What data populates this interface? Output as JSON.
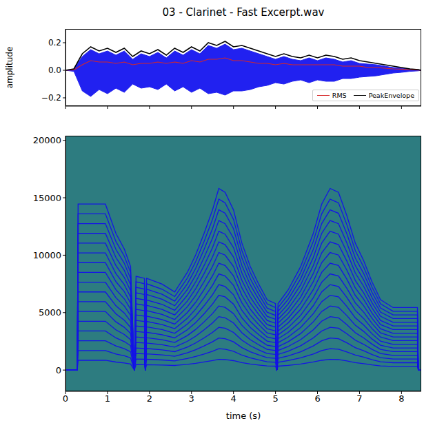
{
  "chart_data": [
    {
      "type": "line",
      "title": "03 - Clarinet - Fast Excerpt.wav",
      "y_label": "amplitude",
      "x": [
        0,
        0.2,
        0.4,
        0.6,
        0.8,
        1.0,
        1.2,
        1.4,
        1.6,
        1.8,
        2.0,
        2.2,
        2.4,
        2.6,
        2.8,
        3.0,
        3.2,
        3.4,
        3.6,
        3.8,
        4.0,
        4.2,
        4.4,
        4.6,
        4.8,
        5.0,
        5.2,
        5.4,
        5.6,
        5.8,
        6.0,
        6.2,
        6.4,
        6.6,
        6.8,
        7.0,
        7.2,
        7.4,
        7.6,
        7.8,
        8.0,
        8.2,
        8.4,
        8.47
      ],
      "series": [
        {
          "name": "RMS",
          "color": "#d62728",
          "values": [
            0,
            0.003,
            0.04,
            0.07,
            0.06,
            0.06,
            0.05,
            0.06,
            0.04,
            0.05,
            0.05,
            0.06,
            0.05,
            0.06,
            0.05,
            0.07,
            0.06,
            0.08,
            0.08,
            0.09,
            0.07,
            0.07,
            0.06,
            0.05,
            0.05,
            0.04,
            0.05,
            0.04,
            0.04,
            0.04,
            0.04,
            0.04,
            0.04,
            0.03,
            0.03,
            0.03,
            0.02,
            0.02,
            0.015,
            0.01,
            0.008,
            0.004,
            0.002,
            0
          ]
        },
        {
          "name": "PeakEnvelope",
          "color": "#000000",
          "values": [
            0,
            0.01,
            0.12,
            0.17,
            0.14,
            0.16,
            0.13,
            0.16,
            0.1,
            0.14,
            0.12,
            0.15,
            0.11,
            0.16,
            0.13,
            0.17,
            0.14,
            0.2,
            0.18,
            0.21,
            0.17,
            0.18,
            0.16,
            0.14,
            0.12,
            0.1,
            0.12,
            0.1,
            0.09,
            0.11,
            0.09,
            0.11,
            0.1,
            0.08,
            0.09,
            0.07,
            0.06,
            0.05,
            0.04,
            0.03,
            0.02,
            0.01,
            0.005,
            0
          ]
        }
      ],
      "waveform": {
        "color": "#2121f0",
        "max": [
          0,
          0.008,
          0.1,
          0.15,
          0.12,
          0.14,
          0.11,
          0.14,
          0.08,
          0.12,
          0.1,
          0.13,
          0.09,
          0.14,
          0.11,
          0.15,
          0.12,
          0.18,
          0.16,
          0.19,
          0.15,
          0.16,
          0.14,
          0.12,
          0.1,
          0.08,
          0.1,
          0.08,
          0.07,
          0.09,
          0.07,
          0.09,
          0.08,
          0.06,
          0.07,
          0.05,
          0.045,
          0.04,
          0.03,
          0.02,
          0.015,
          0.008,
          0.004,
          0
        ],
        "min": [
          0,
          -0.008,
          -0.15,
          -0.19,
          -0.14,
          -0.17,
          -0.13,
          -0.16,
          -0.1,
          -0.13,
          -0.12,
          -0.14,
          -0.1,
          -0.15,
          -0.12,
          -0.16,
          -0.13,
          -0.17,
          -0.16,
          -0.18,
          -0.15,
          -0.15,
          -0.14,
          -0.12,
          -0.11,
          -0.09,
          -0.1,
          -0.08,
          -0.07,
          -0.09,
          -0.07,
          -0.08,
          -0.08,
          -0.06,
          -0.06,
          -0.05,
          -0.045,
          -0.04,
          -0.03,
          -0.02,
          -0.015,
          -0.008,
          -0.004,
          0
        ]
      },
      "xlim": [
        0,
        8.47
      ],
      "xticks": [
        0,
        1,
        2,
        3,
        4,
        5,
        6,
        7,
        8
      ],
      "ylim": [
        -0.26,
        0.3
      ],
      "yticks": [
        {
          "value": -0.2,
          "label": "−0.2"
        },
        {
          "value": 0,
          "label": "0.0"
        },
        {
          "value": 0.2,
          "label": "0.2"
        }
      ],
      "tick_labels": "y",
      "legend": "lower right"
    },
    {
      "type": "line",
      "x_label": "time (s)",
      "color": "#1414e6",
      "x": [
        0,
        0.28,
        0.3,
        0.95,
        1.2,
        1.4,
        1.55,
        1.64,
        1.68,
        1.88,
        1.9,
        1.93,
        2.3,
        2.6,
        2.9,
        3.1,
        3.3,
        3.5,
        3.65,
        3.8,
        4.0,
        4.2,
        4.4,
        4.6,
        4.8,
        5.0,
        5.03,
        5.06,
        5.3,
        5.6,
        5.9,
        6.1,
        6.3,
        6.5,
        6.7,
        6.9,
        7.1,
        7.3,
        7.5,
        7.8,
        8.38,
        8.4,
        8.47
      ],
      "series": [
        {
          "values": [
            0,
            0,
            850,
            850,
            700,
            620,
            530,
            0,
            480,
            470,
            0,
            470,
            440,
            400,
            500,
            590,
            700,
            820,
            930,
            910,
            820,
            650,
            530,
            440,
            360,
            340,
            0,
            340,
            410,
            530,
            700,
            850,
            930,
            910,
            790,
            650,
            560,
            450,
            360,
            320,
            320,
            0,
            0
          ]
        },
        {
          "values": [
            0,
            0,
            1700,
            1700,
            1400,
            1240,
            1060,
            0,
            960,
            940,
            0,
            940,
            880,
            800,
            1000,
            1180,
            1400,
            1640,
            1860,
            1820,
            1640,
            1300,
            1060,
            880,
            720,
            680,
            0,
            680,
            820,
            1060,
            1400,
            1700,
            1860,
            1820,
            1580,
            1300,
            1120,
            900,
            720,
            640,
            640,
            0,
            0
          ]
        },
        {
          "values": [
            0,
            0,
            2550,
            2550,
            2100,
            1860,
            1590,
            0,
            1440,
            1410,
            0,
            1410,
            1320,
            1200,
            1500,
            1770,
            2100,
            2460,
            2790,
            2730,
            2460,
            1950,
            1590,
            1320,
            1080,
            1020,
            0,
            1020,
            1230,
            1590,
            2100,
            2550,
            2790,
            2730,
            2370,
            1950,
            1680,
            1350,
            1080,
            960,
            960,
            0,
            0
          ]
        },
        {
          "values": [
            0,
            0,
            3400,
            3400,
            2800,
            2480,
            2120,
            0,
            1920,
            1880,
            0,
            1880,
            1760,
            1600,
            2000,
            2360,
            2800,
            3280,
            3720,
            3640,
            3280,
            2600,
            2120,
            1760,
            1440,
            1360,
            0,
            1360,
            1640,
            2120,
            2800,
            3400,
            3720,
            3640,
            3160,
            2600,
            2240,
            1800,
            1440,
            1280,
            1280,
            0,
            0
          ]
        },
        {
          "values": [
            0,
            0,
            4250,
            4250,
            3500,
            3100,
            2650,
            0,
            2400,
            2350,
            0,
            2350,
            2200,
            2000,
            2500,
            2950,
            3500,
            4100,
            4650,
            4550,
            4100,
            3250,
            2650,
            2200,
            1800,
            1700,
            0,
            1700,
            2050,
            2650,
            3500,
            4250,
            4650,
            4550,
            3950,
            3250,
            2800,
            2250,
            1800,
            1600,
            1600,
            0,
            0
          ]
        },
        {
          "values": [
            0,
            0,
            5100,
            5100,
            4200,
            3720,
            3180,
            0,
            2880,
            2820,
            0,
            2820,
            2640,
            2400,
            3000,
            3540,
            4200,
            4920,
            5580,
            5460,
            4920,
            3900,
            3180,
            2640,
            2160,
            2040,
            0,
            2040,
            2460,
            3180,
            4200,
            5100,
            5580,
            5460,
            4740,
            3900,
            3360,
            2700,
            2160,
            1920,
            1920,
            0,
            0
          ]
        },
        {
          "values": [
            0,
            0,
            5950,
            5950,
            4900,
            4340,
            3710,
            0,
            3360,
            3290,
            0,
            3290,
            3080,
            2800,
            3500,
            4130,
            4900,
            5740,
            6510,
            6370,
            5740,
            4550,
            3710,
            3080,
            2520,
            2380,
            0,
            2380,
            2870,
            3710,
            4900,
            5950,
            6510,
            6370,
            5530,
            4550,
            3920,
            3150,
            2520,
            2240,
            2240,
            0,
            0
          ]
        },
        {
          "values": [
            0,
            0,
            6800,
            6800,
            5600,
            4960,
            4240,
            0,
            3840,
            3760,
            0,
            3760,
            3520,
            3200,
            4000,
            4720,
            5600,
            6560,
            7440,
            7280,
            6560,
            5200,
            4240,
            3520,
            2880,
            2720,
            0,
            2720,
            3280,
            4240,
            5600,
            6800,
            7440,
            7280,
            6320,
            5200,
            4480,
            3600,
            2880,
            2560,
            2560,
            0,
            0
          ]
        },
        {
          "values": [
            0,
            0,
            7650,
            7650,
            6300,
            5580,
            4770,
            0,
            4320,
            4230,
            0,
            4230,
            3960,
            3600,
            4500,
            5310,
            6300,
            7380,
            8370,
            8190,
            7380,
            5850,
            4770,
            3960,
            3240,
            3060,
            0,
            3060,
            3690,
            4770,
            6300,
            7650,
            8370,
            8190,
            7110,
            5850,
            5040,
            4050,
            3240,
            2880,
            2880,
            0,
            0
          ]
        },
        {
          "values": [
            0,
            0,
            8500,
            8500,
            7000,
            6200,
            5300,
            0,
            4800,
            4700,
            0,
            4700,
            4400,
            4000,
            5000,
            5900,
            7000,
            8200,
            9300,
            9100,
            8200,
            6500,
            5300,
            4400,
            3600,
            3400,
            0,
            3400,
            4100,
            5300,
            7000,
            8500,
            9300,
            9100,
            7900,
            6500,
            5600,
            4500,
            3600,
            3200,
            3200,
            0,
            0
          ]
        },
        {
          "values": [
            0,
            0,
            9350,
            9350,
            7700,
            6820,
            5830,
            0,
            5280,
            5170,
            0,
            5170,
            4840,
            4400,
            5500,
            6490,
            7700,
            9020,
            10230,
            10010,
            9020,
            7150,
            5830,
            4840,
            3960,
            3740,
            0,
            3740,
            4510,
            5830,
            7700,
            9350,
            10230,
            10010,
            8690,
            7150,
            6160,
            4950,
            3960,
            3520,
            3520,
            0,
            0
          ]
        },
        {
          "values": [
            0,
            0,
            10200,
            10200,
            8400,
            7440,
            6360,
            0,
            5760,
            5640,
            0,
            5640,
            5280,
            4800,
            6000,
            7080,
            8400,
            9840,
            11160,
            10920,
            9840,
            7800,
            6360,
            5280,
            4320,
            4080,
            0,
            4080,
            4920,
            6360,
            8400,
            10200,
            11160,
            10920,
            9480,
            7800,
            6720,
            5400,
            4320,
            3840,
            3840,
            0,
            0
          ]
        },
        {
          "values": [
            0,
            0,
            11050,
            11050,
            9100,
            8060,
            6890,
            0,
            6240,
            6110,
            0,
            6110,
            5720,
            5200,
            6500,
            7670,
            9100,
            10660,
            12090,
            11830,
            10660,
            8450,
            6890,
            5720,
            4680,
            4420,
            0,
            4420,
            5330,
            6890,
            9100,
            11050,
            12090,
            11830,
            10270,
            8450,
            7280,
            5850,
            4680,
            4160,
            4160,
            0,
            0
          ]
        },
        {
          "values": [
            0,
            0,
            11900,
            11900,
            9800,
            8680,
            7420,
            0,
            6720,
            6580,
            0,
            6580,
            6160,
            5600,
            7000,
            8260,
            9800,
            11480,
            13020,
            12740,
            11480,
            9100,
            7420,
            6160,
            5040,
            4760,
            0,
            4760,
            5740,
            7420,
            9800,
            11900,
            13020,
            12740,
            11060,
            9100,
            7840,
            6300,
            5040,
            4480,
            4480,
            0,
            0
          ]
        },
        {
          "values": [
            0,
            0,
            12750,
            12750,
            10500,
            9300,
            7950,
            0,
            7200,
            7050,
            0,
            7050,
            6600,
            6000,
            7500,
            8850,
            10500,
            12300,
            13950,
            13650,
            12300,
            9750,
            7950,
            6600,
            5400,
            5100,
            0,
            5100,
            6150,
            7950,
            10500,
            12750,
            13950,
            13650,
            11850,
            9750,
            8400,
            6750,
            5400,
            4800,
            4800,
            0,
            0
          ]
        },
        {
          "values": [
            0,
            0,
            13600,
            13600,
            11200,
            9920,
            8480,
            0,
            7680,
            7520,
            0,
            7520,
            7040,
            6400,
            8000,
            9440,
            11200,
            13120,
            14880,
            14560,
            13120,
            10400,
            8480,
            7040,
            5760,
            5440,
            0,
            5440,
            6560,
            8480,
            11200,
            13600,
            14880,
            14560,
            12640,
            10400,
            8960,
            7200,
            5760,
            5120,
            5120,
            0,
            0
          ]
        },
        {
          "values": [
            0,
            0,
            14450,
            14450,
            11900,
            10540,
            9010,
            0,
            8160,
            7990,
            0,
            7990,
            7480,
            6800,
            8500,
            10030,
            11900,
            13940,
            15810,
            15470,
            13940,
            11050,
            9010,
            7480,
            6120,
            5780,
            0,
            5780,
            6970,
            9010,
            11900,
            14450,
            15810,
            15470,
            13430,
            11050,
            9520,
            7650,
            6120,
            5440,
            5440,
            0,
            0
          ]
        }
      ],
      "xlim": [
        0,
        8.47
      ],
      "xticks": [
        0,
        1,
        2,
        3,
        4,
        5,
        6,
        7,
        8
      ],
      "ylim": [
        -1850,
        20400
      ],
      "yticks": [
        0,
        5000,
        10000,
        15000,
        20000
      ]
    }
  ]
}
